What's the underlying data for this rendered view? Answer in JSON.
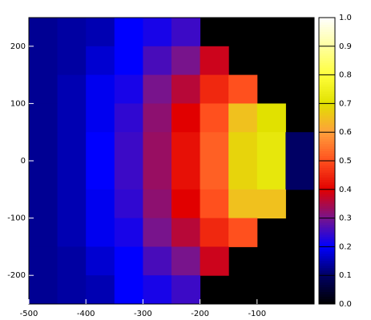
{
  "chart_data": {
    "type": "heatmap",
    "x": [
      -475,
      -425,
      -375,
      -325,
      -275,
      -225,
      -175,
      -125,
      -75,
      -25
    ],
    "y": [
      225,
      175,
      125,
      75,
      25,
      -25,
      -75,
      -125,
      -175,
      -225
    ],
    "z": [
      [
        0.13,
        0.14,
        0.15,
        0.2,
        0.22,
        0.25,
        null,
        null,
        null,
        null
      ],
      [
        0.13,
        0.14,
        0.17,
        0.2,
        0.26,
        0.3,
        0.38,
        null,
        null,
        null
      ],
      [
        0.13,
        0.15,
        0.19,
        0.22,
        0.3,
        0.36,
        0.45,
        0.5,
        null,
        null
      ],
      [
        0.13,
        0.15,
        0.19,
        0.24,
        0.32,
        0.4,
        0.5,
        0.65,
        0.7,
        null
      ],
      [
        0.13,
        0.15,
        0.2,
        0.25,
        0.33,
        0.42,
        0.52,
        0.68,
        0.72,
        0.1
      ],
      [
        0.13,
        0.15,
        0.2,
        0.25,
        0.33,
        0.42,
        0.52,
        0.68,
        0.72,
        0.1
      ],
      [
        0.13,
        0.15,
        0.19,
        0.24,
        0.32,
        0.4,
        0.5,
        0.65,
        0.65,
        null
      ],
      [
        0.13,
        0.15,
        0.19,
        0.22,
        0.3,
        0.36,
        0.45,
        0.5,
        null,
        null
      ],
      [
        0.13,
        0.14,
        0.17,
        0.2,
        0.26,
        0.3,
        0.38,
        null,
        null,
        null
      ],
      [
        0.13,
        0.14,
        0.15,
        0.2,
        0.22,
        0.25,
        null,
        null,
        null,
        null
      ]
    ],
    "xlim": [
      -500,
      0
    ],
    "ylim": [
      -250,
      250
    ],
    "xticks": [
      -500,
      -400,
      -300,
      -200,
      -100
    ],
    "yticks": [
      -200,
      -100,
      0,
      100,
      200
    ],
    "zlim": [
      0,
      1
    ],
    "zticks": [
      {
        "value": 0,
        "label": "0.0"
      },
      0.1,
      0.2,
      0.3,
      0.4,
      0.5,
      0.6,
      0.7,
      0.8,
      0.9,
      {
        "value": 1,
        "label": "1.0"
      }
    ]
  }
}
